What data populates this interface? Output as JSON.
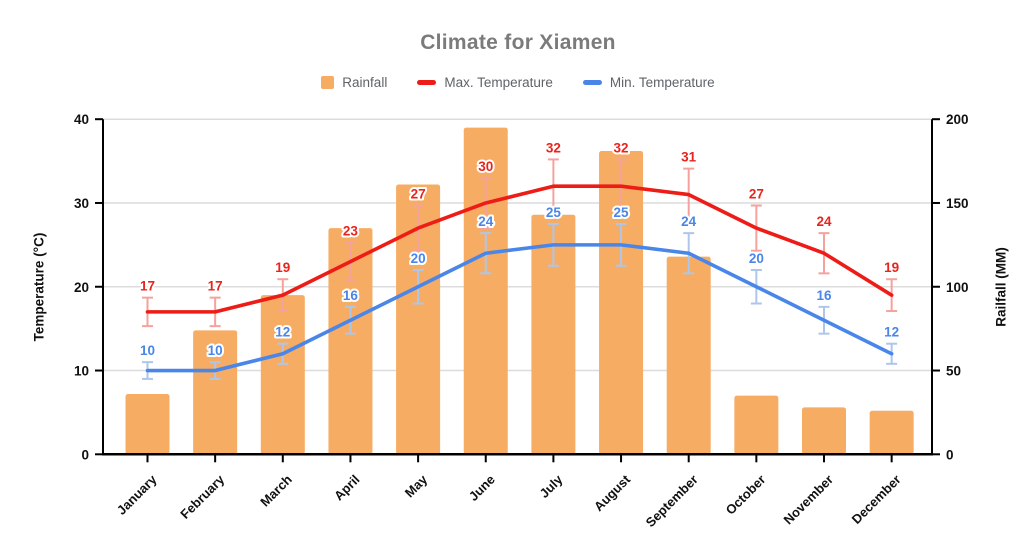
{
  "chart_data": {
    "type": "bar",
    "title": "Climate for Xiamen",
    "categories": [
      "January",
      "February",
      "March",
      "April",
      "May",
      "June",
      "July",
      "August",
      "September",
      "October",
      "November",
      "December"
    ],
    "series": [
      {
        "name": "Rainfall",
        "kind": "bar",
        "axis": "right",
        "color": "#F6AC63",
        "values": [
          36,
          74,
          95,
          135,
          161,
          195,
          143,
          181,
          118,
          35,
          28,
          26
        ]
      },
      {
        "name": "Max. Temperature",
        "kind": "line",
        "axis": "left",
        "color": "#EE1C16",
        "error_color": "#F5A29E",
        "label_color": "#E8251D",
        "error_pct": 10,
        "values": [
          17,
          17,
          19,
          23,
          27,
          30,
          32,
          32,
          31,
          27,
          24,
          19
        ]
      },
      {
        "name": "Min. Temperature",
        "kind": "line",
        "axis": "left",
        "color": "#4A86E8",
        "error_color": "#AEC6EA",
        "label_color": "#4A86E8",
        "error_pct": 10,
        "values": [
          10,
          10,
          12,
          16,
          20,
          24,
          25,
          25,
          24,
          20,
          16,
          12
        ]
      }
    ],
    "left_axis": {
      "title": "Temperature (°C)",
      "min": 0,
      "max": 40,
      "ticks": [
        0,
        10,
        20,
        30,
        40
      ]
    },
    "right_axis": {
      "title": "Railfall (MM)",
      "min": 0,
      "max": 200,
      "ticks": [
        0,
        50,
        100,
        150,
        200
      ]
    },
    "grid": true,
    "legend_position": "top",
    "colors": {
      "gridline": "#dcdcdc",
      "axis_line": "#000000",
      "title_text": "#7b7b7b",
      "legend_text": "#5f6368",
      "tick_text": "#111111"
    }
  }
}
